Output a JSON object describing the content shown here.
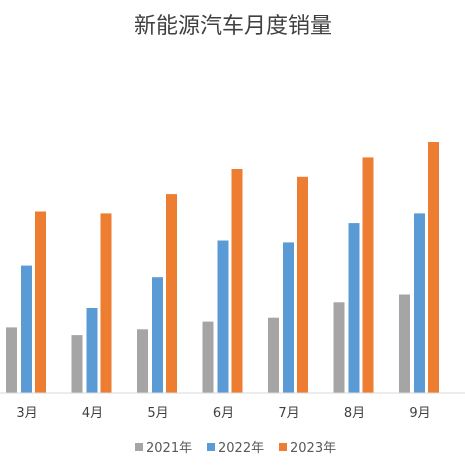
{
  "chart_data": {
    "type": "bar",
    "title": "新能源汽车月度销量",
    "xlabel": "",
    "ylabel": "",
    "categories": [
      "3月",
      "4月",
      "5月",
      "6月",
      "7月",
      "8月",
      "9月"
    ],
    "series": [
      {
        "name": "2021年",
        "color": "#A5A5A5",
        "values": [
          34,
          30,
          33,
          37,
          39,
          47,
          51
        ]
      },
      {
        "name": "2022年",
        "color": "#5B9BD5",
        "values": [
          66,
          44,
          60,
          79,
          78,
          88,
          93
        ]
      },
      {
        "name": "2023年",
        "color": "#ED7D31",
        "values": [
          94,
          93,
          103,
          116,
          112,
          122,
          130
        ]
      }
    ],
    "ylim": [
      0,
      140
    ],
    "grid": false,
    "legend": "bottom"
  }
}
